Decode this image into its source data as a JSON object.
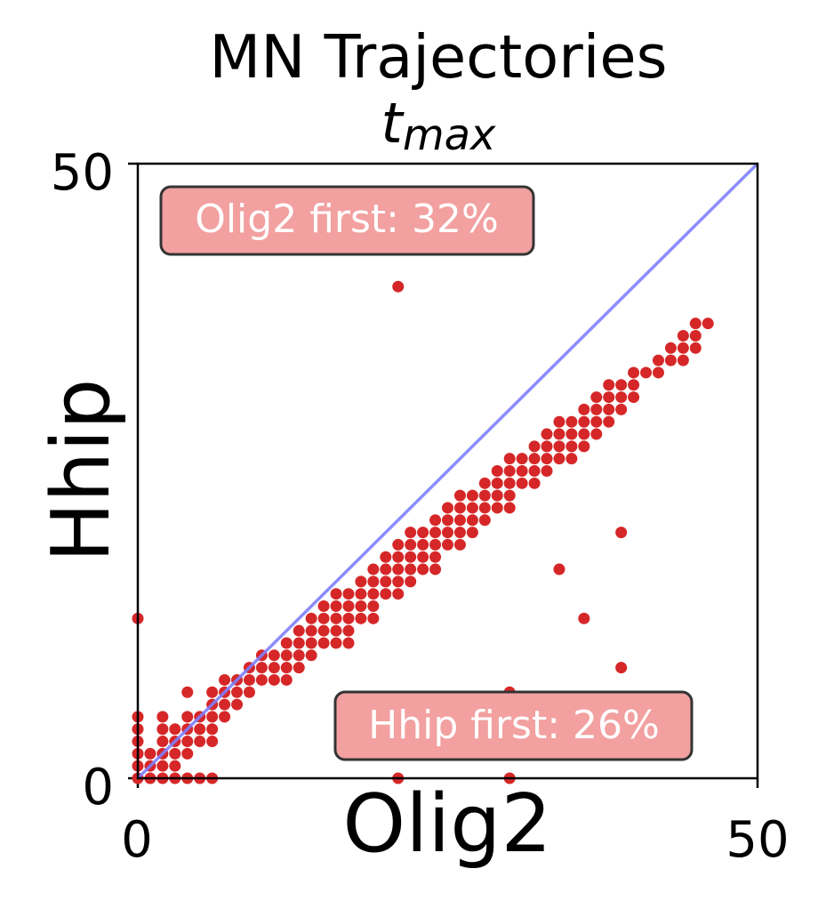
{
  "chart_data": {
    "type": "scatter",
    "title": "MN Trajectories",
    "subtitle": "t_max",
    "subtitle_base": "t",
    "subtitle_sub": "max",
    "xlabel": "Olig2",
    "ylabel": "Hhip",
    "xlim": [
      0,
      50
    ],
    "ylim": [
      0,
      50
    ],
    "xticks": [
      "0",
      "50"
    ],
    "yticks": [
      "0",
      "50"
    ],
    "grid": false,
    "diagonal_line": {
      "from": [
        0,
        0
      ],
      "to": [
        50,
        50
      ],
      "color": "#8080ff"
    },
    "point_color": "#d62728",
    "annotations": [
      {
        "text": "Olig2 first: 32%",
        "position": "top-left",
        "fill": "#f2a0a0",
        "text_color": "#ffffff"
      },
      {
        "text": "Hhip first: 26%",
        "position": "bottom-right",
        "fill": "#f2a0a0",
        "text_color": "#ffffff"
      }
    ],
    "series": [
      {
        "points": [
          [
            0,
            0
          ],
          [
            1,
            0
          ],
          [
            2,
            0
          ],
          [
            3,
            0
          ],
          [
            4,
            0
          ],
          [
            5,
            0
          ],
          [
            6,
            0
          ],
          [
            21,
            0
          ],
          [
            30,
            0
          ],
          [
            0,
            1
          ],
          [
            1,
            1
          ],
          [
            2,
            1
          ],
          [
            3,
            1
          ],
          [
            0,
            2
          ],
          [
            1,
            2
          ],
          [
            2,
            2
          ],
          [
            3,
            2
          ],
          [
            4,
            2
          ],
          [
            0,
            3
          ],
          [
            2,
            3
          ],
          [
            3,
            3
          ],
          [
            4,
            3
          ],
          [
            5,
            3
          ],
          [
            6,
            3
          ],
          [
            0,
            4
          ],
          [
            2,
            4
          ],
          [
            3,
            4
          ],
          [
            4,
            4
          ],
          [
            5,
            4
          ],
          [
            6,
            4
          ],
          [
            0,
            5
          ],
          [
            2,
            5
          ],
          [
            4,
            5
          ],
          [
            5,
            5
          ],
          [
            6,
            5
          ],
          [
            7,
            5
          ],
          [
            6,
            6
          ],
          [
            7,
            6
          ],
          [
            8,
            6
          ],
          [
            4,
            7
          ],
          [
            6,
            7
          ],
          [
            7,
            7
          ],
          [
            8,
            7
          ],
          [
            9,
            7
          ],
          [
            30,
            7
          ],
          [
            7,
            8
          ],
          [
            8,
            8
          ],
          [
            9,
            8
          ],
          [
            10,
            8
          ],
          [
            11,
            8
          ],
          [
            12,
            8
          ],
          [
            9,
            9
          ],
          [
            10,
            9
          ],
          [
            11,
            9
          ],
          [
            12,
            9
          ],
          [
            13,
            9
          ],
          [
            10,
            10
          ],
          [
            11,
            10
          ],
          [
            12,
            10
          ],
          [
            13,
            10
          ],
          [
            14,
            10
          ],
          [
            0,
            13
          ],
          [
            12,
            11
          ],
          [
            13,
            11
          ],
          [
            14,
            11
          ],
          [
            15,
            11
          ],
          [
            16,
            11
          ],
          [
            17,
            11
          ],
          [
            13,
            12
          ],
          [
            14,
            12
          ],
          [
            15,
            12
          ],
          [
            16,
            12
          ],
          [
            17,
            12
          ],
          [
            14,
            13
          ],
          [
            15,
            13
          ],
          [
            16,
            13
          ],
          [
            17,
            13
          ],
          [
            18,
            13
          ],
          [
            19,
            13
          ],
          [
            15,
            14
          ],
          [
            16,
            14
          ],
          [
            17,
            14
          ],
          [
            18,
            14
          ],
          [
            19,
            14
          ],
          [
            16,
            15
          ],
          [
            17,
            15
          ],
          [
            18,
            15
          ],
          [
            19,
            15
          ],
          [
            20,
            15
          ],
          [
            21,
            15
          ],
          [
            18,
            16
          ],
          [
            19,
            16
          ],
          [
            20,
            16
          ],
          [
            21,
            16
          ],
          [
            22,
            16
          ],
          [
            19,
            17
          ],
          [
            20,
            17
          ],
          [
            21,
            17
          ],
          [
            22,
            17
          ],
          [
            23,
            17
          ],
          [
            24,
            17
          ],
          [
            20,
            18
          ],
          [
            21,
            18
          ],
          [
            22,
            18
          ],
          [
            23,
            18
          ],
          [
            24,
            18
          ],
          [
            21,
            19
          ],
          [
            22,
            19
          ],
          [
            23,
            19
          ],
          [
            24,
            19
          ],
          [
            25,
            19
          ],
          [
            26,
            19
          ],
          [
            22,
            20
          ],
          [
            23,
            20
          ],
          [
            24,
            20
          ],
          [
            25,
            20
          ],
          [
            26,
            20
          ],
          [
            27,
            20
          ],
          [
            24,
            21
          ],
          [
            25,
            21
          ],
          [
            26,
            21
          ],
          [
            27,
            21
          ],
          [
            28,
            21
          ],
          [
            25,
            22
          ],
          [
            26,
            22
          ],
          [
            27,
            22
          ],
          [
            28,
            22
          ],
          [
            29,
            22
          ],
          [
            30,
            22
          ],
          [
            26,
            23
          ],
          [
            27,
            23
          ],
          [
            28,
            23
          ],
          [
            29,
            23
          ],
          [
            30,
            23
          ],
          [
            28,
            24
          ],
          [
            29,
            24
          ],
          [
            30,
            24
          ],
          [
            31,
            24
          ],
          [
            32,
            24
          ],
          [
            29,
            25
          ],
          [
            30,
            25
          ],
          [
            31,
            25
          ],
          [
            32,
            25
          ],
          [
            33,
            25
          ],
          [
            30,
            26
          ],
          [
            31,
            26
          ],
          [
            32,
            26
          ],
          [
            33,
            26
          ],
          [
            34,
            26
          ],
          [
            35,
            26
          ],
          [
            32,
            27
          ],
          [
            33,
            27
          ],
          [
            34,
            27
          ],
          [
            35,
            27
          ],
          [
            36,
            27
          ],
          [
            33,
            28
          ],
          [
            34,
            28
          ],
          [
            35,
            28
          ],
          [
            36,
            28
          ],
          [
            37,
            28
          ],
          [
            34,
            29
          ],
          [
            35,
            29
          ],
          [
            36,
            29
          ],
          [
            37,
            29
          ],
          [
            38,
            29
          ],
          [
            36,
            30
          ],
          [
            37,
            30
          ],
          [
            38,
            30
          ],
          [
            39,
            30
          ],
          [
            37,
            31
          ],
          [
            38,
            31
          ],
          [
            39,
            31
          ],
          [
            40,
            31
          ],
          [
            38,
            32
          ],
          [
            39,
            32
          ],
          [
            40,
            32
          ],
          [
            21,
            40
          ],
          [
            40,
            33
          ],
          [
            41,
            33
          ],
          [
            42,
            33
          ],
          [
            42,
            34
          ],
          [
            43,
            34
          ],
          [
            44,
            34
          ],
          [
            43,
            35
          ],
          [
            44,
            35
          ],
          [
            45,
            35
          ],
          [
            44,
            36
          ],
          [
            45,
            36
          ],
          [
            45,
            37
          ],
          [
            46,
            37
          ],
          [
            22,
            3
          ],
          [
            24,
            3
          ],
          [
            34,
            17
          ],
          [
            36,
            13
          ],
          [
            39,
            20
          ],
          [
            39,
            9
          ]
        ]
      }
    ]
  }
}
